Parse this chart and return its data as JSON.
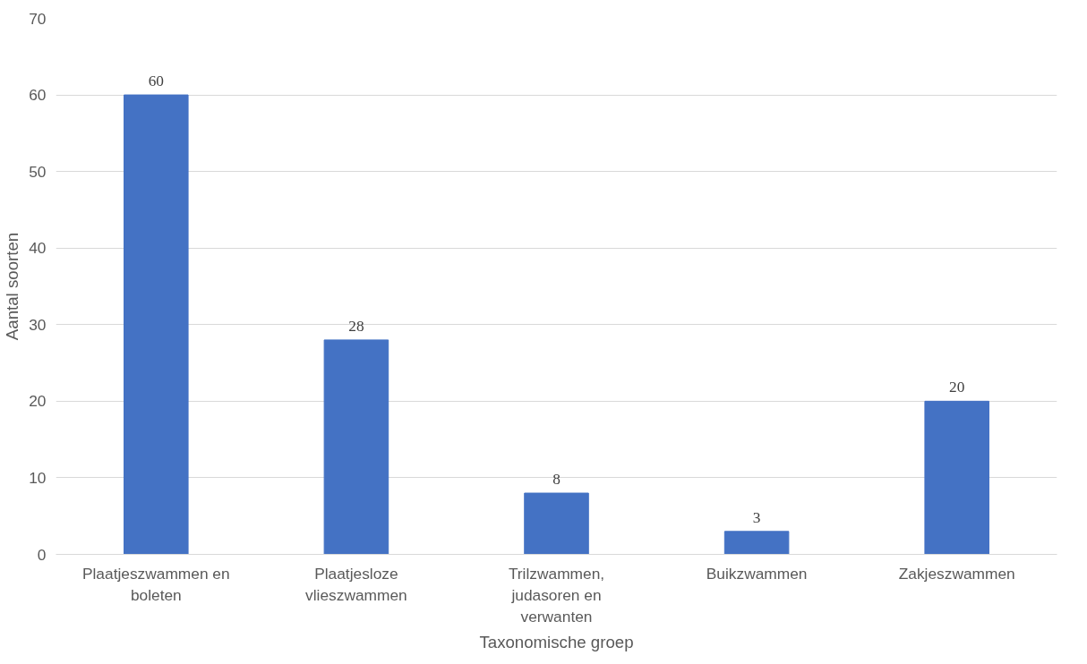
{
  "chart_data": {
    "type": "bar",
    "xlabel": "Taxonomische groep",
    "ylabel": "Aantal soorten",
    "categories": [
      "Plaatjeszwammen en boleten",
      "Plaatjesloze vlieszwammen",
      "Trilzwammen, judasoren en verwanten",
      "Buikzwammen",
      "Zakjeszwammen"
    ],
    "values": [
      60,
      28,
      8,
      3,
      20
    ],
    "color": "#4472c4",
    "ylim": [
      0,
      70
    ],
    "yticks": [
      0,
      10,
      20,
      30,
      40,
      50,
      60,
      70
    ],
    "grid": "y",
    "data_labels": true
  }
}
